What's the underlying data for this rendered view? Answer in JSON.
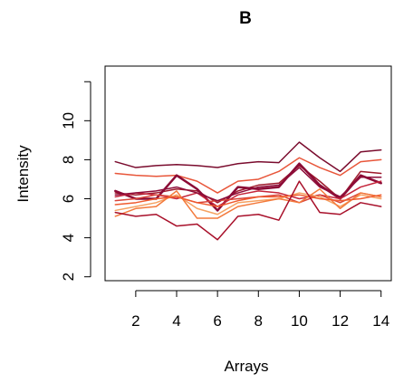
{
  "chart_data": {
    "type": "line",
    "title": "B",
    "xlabel": "Arrays",
    "ylabel": "Intensity",
    "xlim": [
      0.5,
      14.5
    ],
    "ylim": [
      1.8,
      12.8
    ],
    "x_ticks": [
      2,
      4,
      6,
      8,
      10,
      12,
      14
    ],
    "y_ticks": [
      2,
      4,
      6,
      8,
      10
    ],
    "x": [
      1,
      2,
      3,
      4,
      5,
      6,
      7,
      8,
      9,
      10,
      11,
      12,
      13,
      14
    ],
    "series": [
      {
        "color": "#7a0c2e",
        "width": 1.5,
        "values": [
          7.9,
          7.6,
          7.7,
          7.75,
          7.7,
          7.6,
          7.8,
          7.9,
          7.85,
          8.9,
          8.1,
          7.4,
          8.4,
          8.5
        ]
      },
      {
        "color": "#e8563a",
        "width": 1.5,
        "values": [
          7.3,
          7.2,
          7.15,
          7.2,
          6.9,
          6.3,
          6.9,
          7.0,
          7.4,
          8.1,
          7.6,
          7.2,
          7.9,
          8.0
        ]
      },
      {
        "color": "#9e1a2c",
        "width": 1.5,
        "values": [
          6.3,
          6.2,
          6.3,
          6.5,
          6.4,
          5.8,
          6.4,
          6.7,
          6.8,
          7.7,
          6.9,
          6.0,
          7.4,
          7.3
        ]
      },
      {
        "color": "#8b0a35",
        "width": 2.5,
        "values": [
          6.4,
          6.0,
          6.0,
          7.2,
          6.5,
          5.4,
          6.6,
          6.5,
          6.6,
          7.8,
          6.7,
          6.0,
          7.2,
          6.8
        ]
      },
      {
        "color": "#c4243a",
        "width": 1.5,
        "values": [
          6.1,
          6.3,
          6.2,
          6.0,
          6.3,
          5.6,
          6.2,
          6.4,
          6.3,
          6.0,
          6.2,
          6.0,
          6.6,
          6.9
        ]
      },
      {
        "color": "#d9453a",
        "width": 1.5,
        "values": [
          5.9,
          6.0,
          6.2,
          6.1,
          5.8,
          5.9,
          6.0,
          6.1,
          6.2,
          5.8,
          6.2,
          5.8,
          6.3,
          6.1
        ]
      },
      {
        "color": "#f5a262",
        "width": 1.5,
        "values": [
          5.4,
          5.6,
          5.8,
          6.2,
          5.5,
          5.2,
          5.8,
          5.9,
          6.0,
          6.3,
          6.1,
          5.6,
          6.2,
          6.0
        ]
      },
      {
        "color": "#f37a3c",
        "width": 1.5,
        "values": [
          5.1,
          5.5,
          5.6,
          6.4,
          5.0,
          5.0,
          5.6,
          5.8,
          6.0,
          5.8,
          6.5,
          5.5,
          6.3,
          6.1
        ]
      },
      {
        "color": "#ef5a2e",
        "width": 1.5,
        "values": [
          5.7,
          5.8,
          6.0,
          6.1,
          5.8,
          5.6,
          5.9,
          6.1,
          6.1,
          6.2,
          6.0,
          5.9,
          6.0,
          6.2
        ]
      },
      {
        "color": "#a8102a",
        "width": 1.5,
        "values": [
          5.3,
          5.1,
          5.2,
          4.6,
          4.7,
          3.9,
          5.1,
          5.2,
          4.9,
          6.9,
          5.3,
          5.2,
          5.8,
          5.6
        ]
      },
      {
        "color": "#8e0e3a",
        "width": 1.5,
        "values": [
          6.2,
          6.3,
          6.4,
          6.6,
          6.3,
          5.9,
          6.3,
          6.6,
          6.7,
          7.6,
          6.6,
          6.1,
          7.1,
          7.1
        ]
      }
    ]
  }
}
